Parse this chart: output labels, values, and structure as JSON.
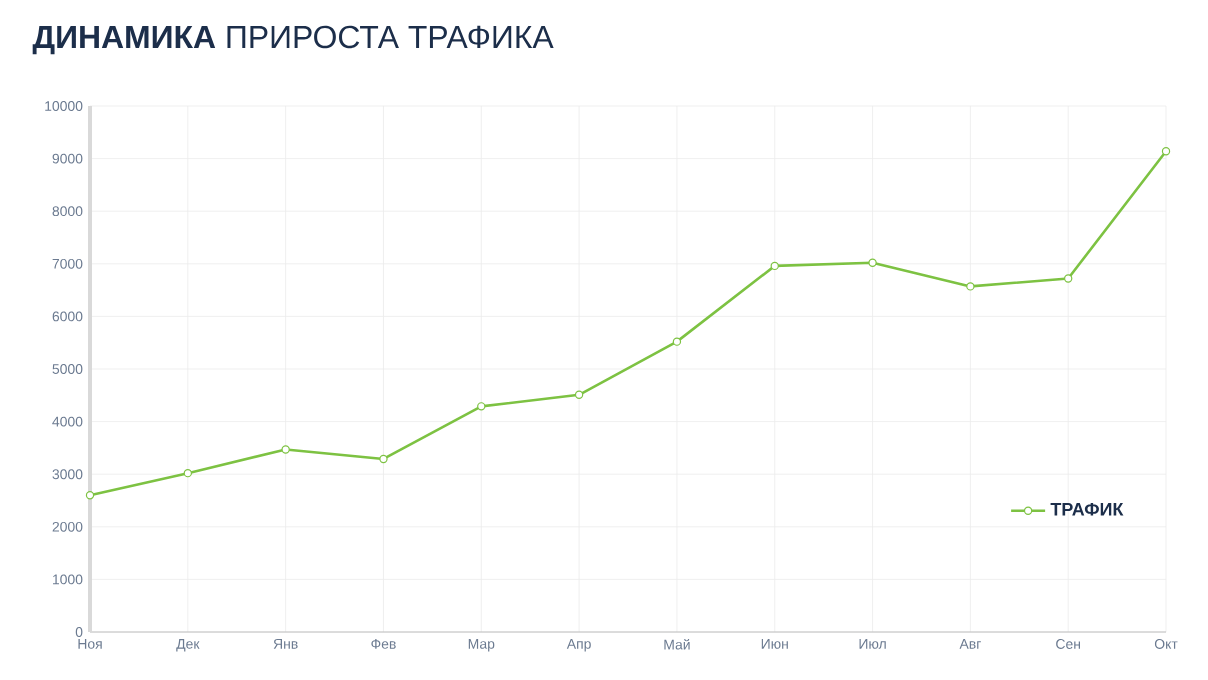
{
  "chart_data": {
    "type": "line",
    "title": "**ДИНАМИКА** ПРИРОСТА ТРАФИКА",
    "categories": [
      "Ноя",
      "Дек",
      "Янв",
      "Фев",
      "Мар",
      "Апр",
      "Май",
      "Июн",
      "Июл",
      "Авг",
      "Сен",
      "Окт"
    ],
    "series": [
      {
        "name": "ТРАФИК",
        "color": "#7dc242",
        "values": [
          2600,
          3020,
          3470,
          3290,
          4290,
          4510,
          5520,
          6960,
          7020,
          6570,
          6720,
          9140
        ]
      }
    ],
    "ylim": [
      0,
      10000
    ],
    "yticks": [
      0,
      1000,
      2000,
      3000,
      4000,
      5000,
      6000,
      7000,
      8000,
      9000,
      10000
    ],
    "grid": true,
    "marker": "circle",
    "legend": "bottom right"
  }
}
